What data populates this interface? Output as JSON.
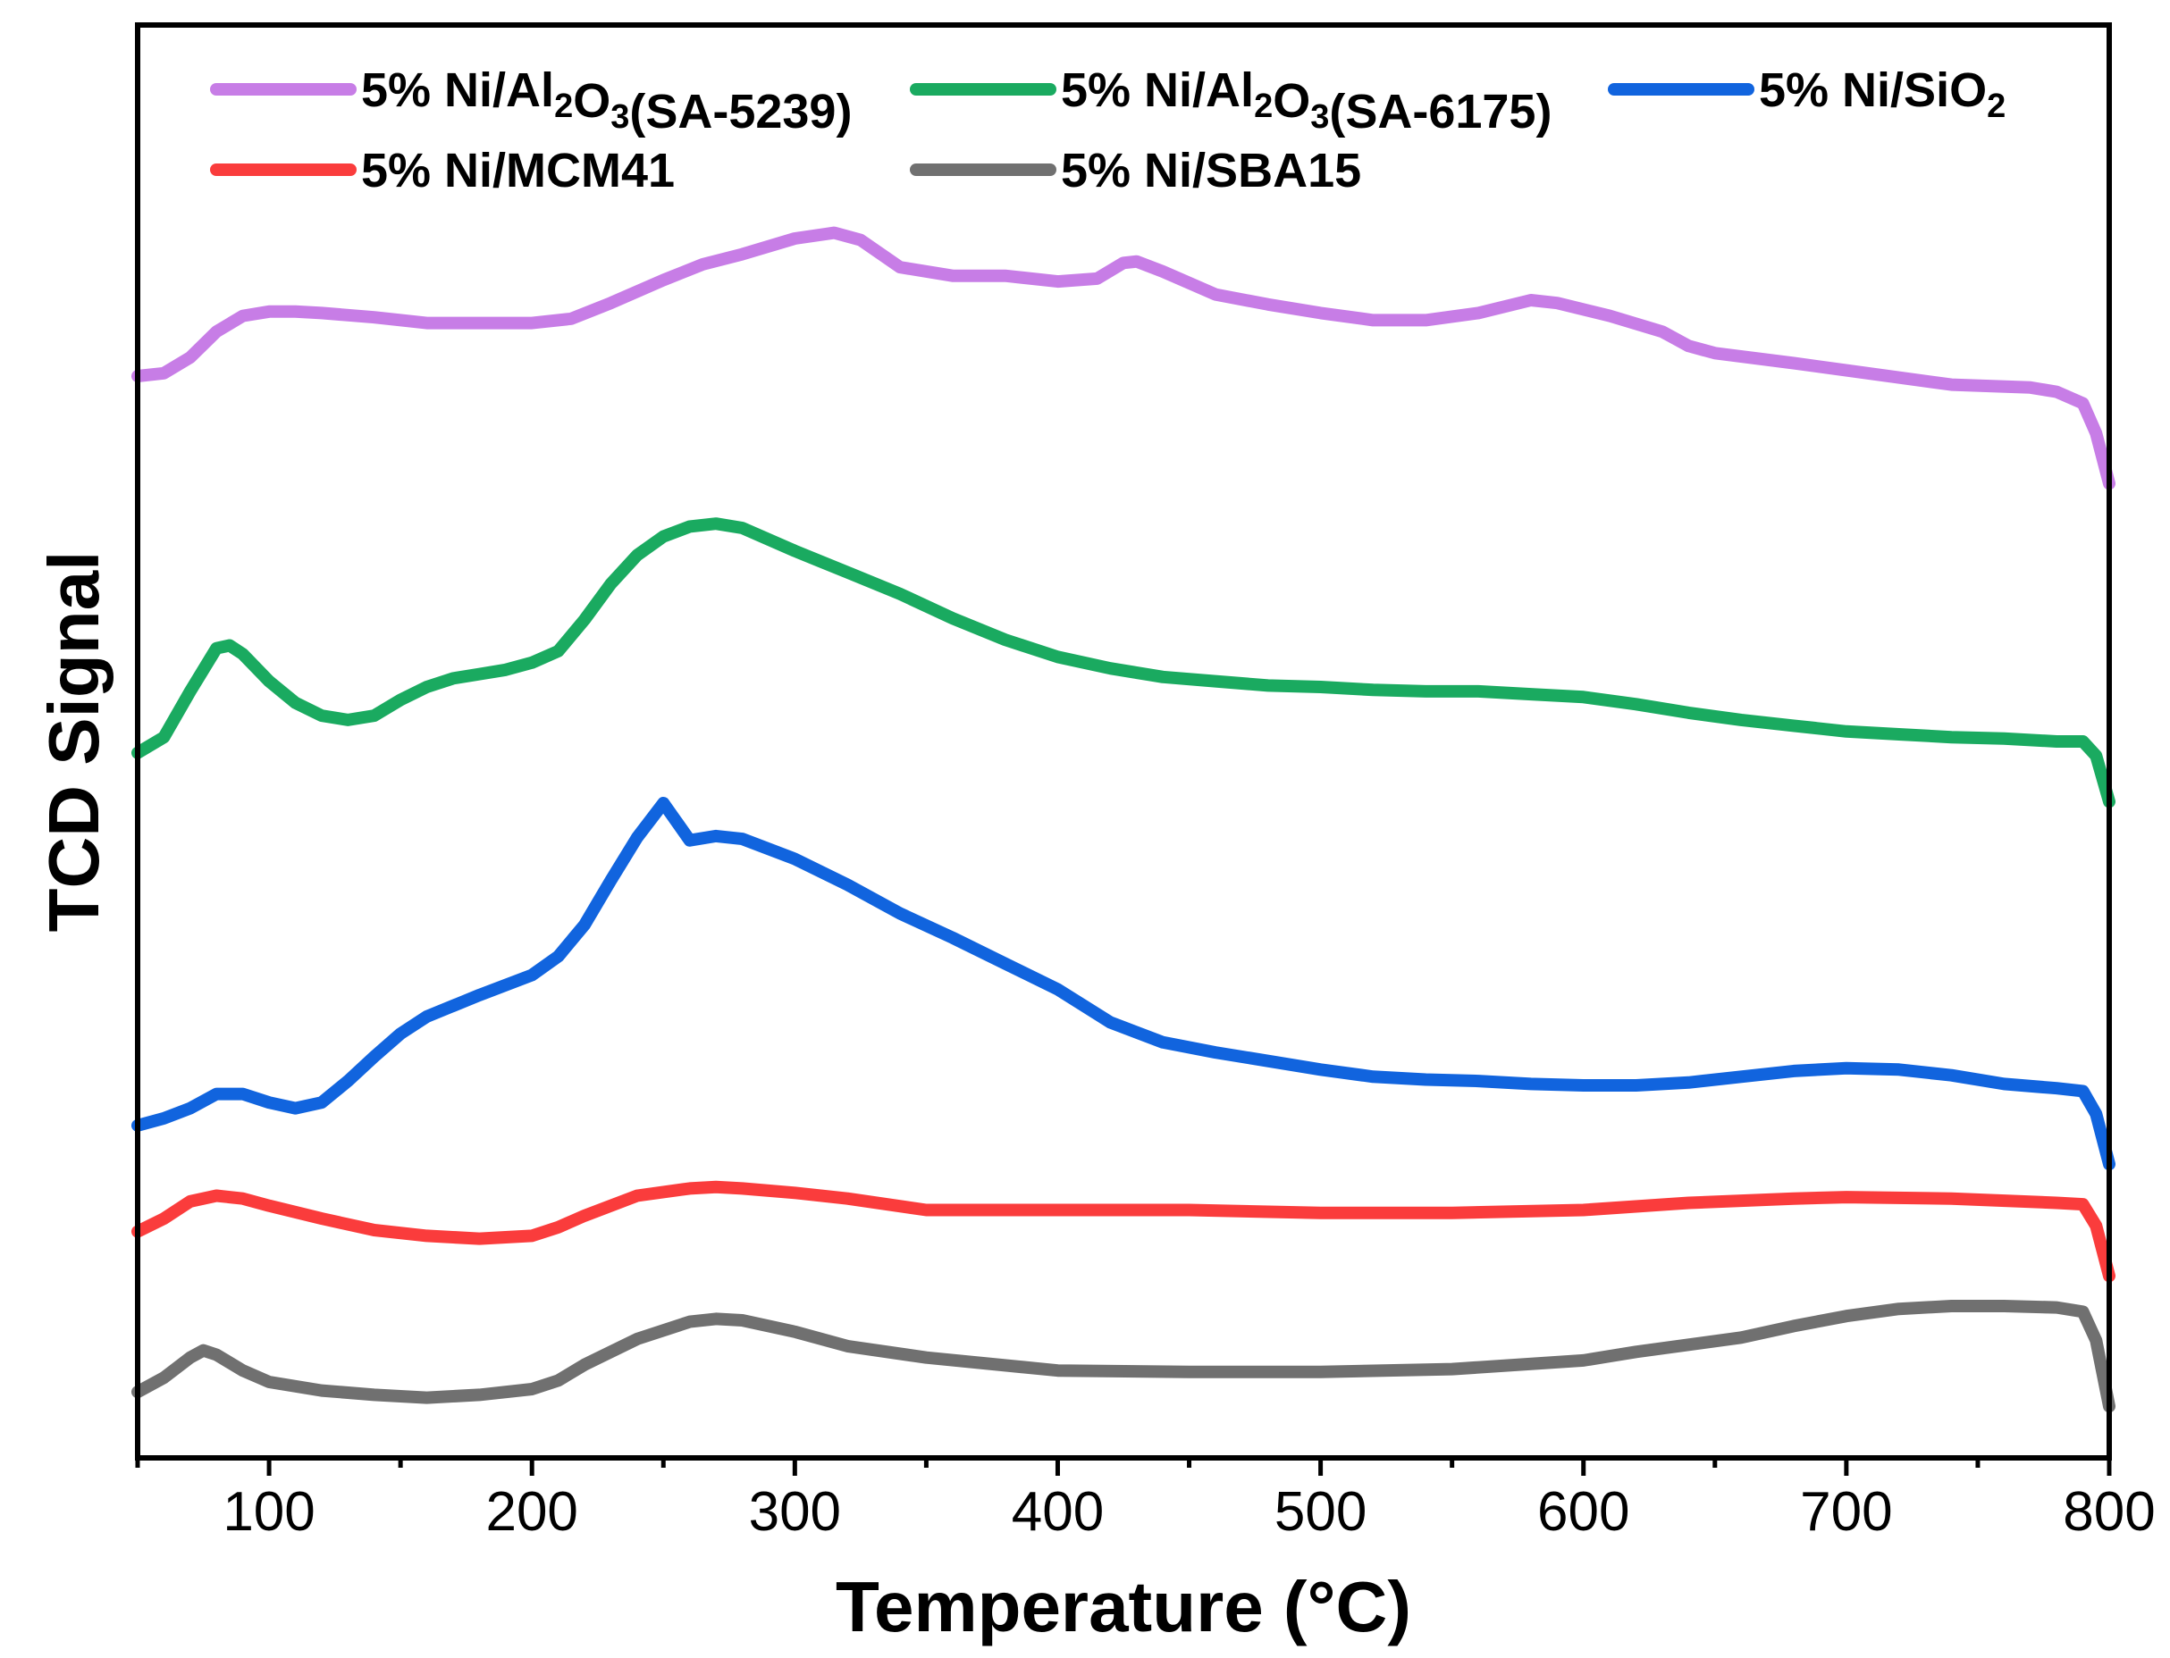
{
  "chart_data": {
    "type": "line",
    "xlabel": "Temperature (°C)",
    "ylabel": "TCD Signal",
    "xlim": [
      50,
      800
    ],
    "ylim": [
      0,
      1
    ],
    "yticks_shown": false,
    "xticks": [
      100,
      200,
      300,
      400,
      500,
      600,
      700,
      800
    ],
    "xtick_labels": [
      "100",
      "200",
      "300",
      "400",
      "500",
      "600",
      "700",
      "800"
    ],
    "legend_position": "top",
    "legend": [
      {
        "label_main": "5% Ni/Al",
        "sub1": "2",
        "mid": "O",
        "sub2": "3",
        "label_tail": "(SA-5239)"
      },
      {
        "label_main": "5% Ni/Al",
        "sub1": "2",
        "mid": "O",
        "sub2": "3",
        "label_tail": "(SA-6175)"
      },
      {
        "label_main": "5% Ni/SiO",
        "sub1": "2",
        "mid": "",
        "sub2": "",
        "label_tail": ""
      },
      {
        "label_main": "5% Ni/MCM41",
        "sub1": "",
        "mid": "",
        "sub2": "",
        "label_tail": ""
      },
      {
        "label_main": "5% Ni/SBA15",
        "sub1": "",
        "mid": "",
        "sub2": "",
        "label_tail": ""
      }
    ],
    "series": [
      {
        "name": "5% Ni/Al2O3(SA-5239)",
        "color": "#c77de6",
        "x": [
          50,
          60,
          70,
          80,
          90,
          100,
          110,
          120,
          140,
          160,
          180,
          200,
          215,
          230,
          250,
          265,
          280,
          300,
          315,
          325,
          340,
          360,
          380,
          400,
          415,
          425,
          430,
          440,
          460,
          480,
          500,
          520,
          540,
          560,
          580,
          590,
          610,
          630,
          640,
          650,
          680,
          700,
          740,
          770,
          780,
          790,
          795,
          800
        ],
        "y": [
          0.755,
          0.757,
          0.768,
          0.786,
          0.797,
          0.8,
          0.8,
          0.799,
          0.796,
          0.792,
          0.792,
          0.792,
          0.795,
          0.806,
          0.822,
          0.833,
          0.84,
          0.851,
          0.855,
          0.85,
          0.831,
          0.825,
          0.825,
          0.821,
          0.823,
          0.834,
          0.835,
          0.828,
          0.812,
          0.805,
          0.799,
          0.794,
          0.794,
          0.799,
          0.808,
          0.806,
          0.797,
          0.786,
          0.776,
          0.771,
          0.764,
          0.759,
          0.749,
          0.747,
          0.744,
          0.736,
          0.715,
          0.68
        ]
      },
      {
        "name": "5% Ni/Al2O3(SA-6175)",
        "color": "#1aaa60",
        "x": [
          50,
          60,
          70,
          80,
          85,
          90,
          100,
          110,
          120,
          130,
          140,
          150,
          160,
          170,
          180,
          190,
          200,
          210,
          220,
          230,
          240,
          250,
          260,
          270,
          280,
          300,
          320,
          340,
          360,
          380,
          400,
          420,
          440,
          460,
          480,
          500,
          520,
          540,
          560,
          580,
          600,
          620,
          640,
          660,
          680,
          700,
          720,
          740,
          760,
          780,
          790,
          795,
          800
        ],
        "y": [
          0.492,
          0.503,
          0.535,
          0.565,
          0.567,
          0.561,
          0.542,
          0.527,
          0.518,
          0.515,
          0.518,
          0.529,
          0.538,
          0.544,
          0.547,
          0.55,
          0.555,
          0.563,
          0.585,
          0.61,
          0.63,
          0.643,
          0.65,
          0.652,
          0.649,
          0.633,
          0.618,
          0.603,
          0.586,
          0.571,
          0.559,
          0.551,
          0.545,
          0.542,
          0.539,
          0.538,
          0.536,
          0.535,
          0.535,
          0.533,
          0.531,
          0.526,
          0.52,
          0.515,
          0.511,
          0.507,
          0.505,
          0.503,
          0.502,
          0.5,
          0.5,
          0.49,
          0.458
        ]
      },
      {
        "name": "5% Ni/SiO2",
        "color": "#1164de",
        "x": [
          50,
          60,
          70,
          80,
          90,
          100,
          110,
          120,
          130,
          140,
          150,
          160,
          180,
          200,
          210,
          220,
          230,
          240,
          250,
          260,
          270,
          280,
          300,
          320,
          340,
          360,
          380,
          400,
          420,
          440,
          460,
          480,
          500,
          520,
          540,
          560,
          580,
          600,
          620,
          640,
          660,
          680,
          700,
          720,
          740,
          760,
          780,
          790,
          795,
          800
        ],
        "y": [
          0.232,
          0.237,
          0.244,
          0.254,
          0.254,
          0.248,
          0.244,
          0.248,
          0.263,
          0.28,
          0.296,
          0.308,
          0.323,
          0.337,
          0.35,
          0.372,
          0.403,
          0.433,
          0.457,
          0.431,
          0.434,
          0.432,
          0.418,
          0.4,
          0.38,
          0.363,
          0.345,
          0.327,
          0.304,
          0.29,
          0.283,
          0.277,
          0.271,
          0.266,
          0.264,
          0.263,
          0.261,
          0.26,
          0.26,
          0.262,
          0.266,
          0.27,
          0.272,
          0.271,
          0.267,
          0.261,
          0.258,
          0.256,
          0.24,
          0.205
        ]
      },
      {
        "name": "5% Ni/MCM41",
        "color": "#fa3c3c",
        "x": [
          50,
          60,
          70,
          80,
          90,
          100,
          120,
          140,
          160,
          180,
          200,
          210,
          220,
          240,
          260,
          270,
          280,
          300,
          320,
          350,
          400,
          450,
          500,
          550,
          600,
          640,
          680,
          700,
          740,
          780,
          790,
          795,
          800
        ],
        "y": [
          0.158,
          0.167,
          0.179,
          0.183,
          0.181,
          0.176,
          0.167,
          0.159,
          0.155,
          0.153,
          0.155,
          0.161,
          0.169,
          0.183,
          0.188,
          0.189,
          0.188,
          0.185,
          0.181,
          0.173,
          0.173,
          0.173,
          0.171,
          0.171,
          0.173,
          0.178,
          0.181,
          0.182,
          0.181,
          0.178,
          0.177,
          0.162,
          0.127
        ]
      },
      {
        "name": "5% Ni/SBA15",
        "color": "#707070",
        "x": [
          50,
          60,
          70,
          75,
          80,
          90,
          100,
          120,
          140,
          160,
          180,
          200,
          210,
          220,
          240,
          260,
          270,
          280,
          300,
          320,
          350,
          400,
          450,
          500,
          550,
          600,
          620,
          640,
          660,
          680,
          700,
          720,
          740,
          760,
          780,
          790,
          795,
          800
        ],
        "y": [
          0.046,
          0.056,
          0.07,
          0.075,
          0.072,
          0.061,
          0.053,
          0.047,
          0.044,
          0.042,
          0.044,
          0.048,
          0.054,
          0.065,
          0.083,
          0.095,
          0.097,
          0.096,
          0.088,
          0.078,
          0.07,
          0.061,
          0.06,
          0.06,
          0.062,
          0.068,
          0.074,
          0.079,
          0.084,
          0.092,
          0.099,
          0.104,
          0.106,
          0.106,
          0.105,
          0.102,
          0.082,
          0.036
        ]
      }
    ]
  }
}
